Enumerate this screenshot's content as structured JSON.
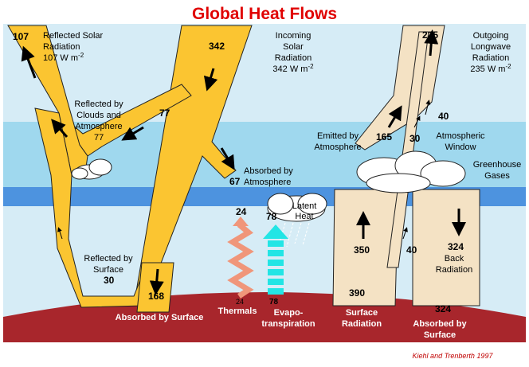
{
  "title": "Global Heat Flows",
  "credit": "Kiehl and Trenberth 1997",
  "unit": "W m",
  "unit_exp": "-2",
  "labels": {
    "reflected_solar": [
      "Reflected Solar",
      "Radiation"
    ],
    "reflected_solar_value": "107",
    "incoming_solar": [
      "Incoming",
      "Solar",
      "Radiation"
    ],
    "incoming_solar_value": "342",
    "outgoing_longwave": [
      "Outgoing",
      "Longwave",
      "Radiation"
    ],
    "outgoing_longwave_value": "235",
    "reflected_clouds": [
      "Reflected by",
      "Clouds and",
      "Atmosphere"
    ],
    "absorbed_atmosphere": [
      "Absorbed by",
      "Atmosphere"
    ],
    "emitted_atmosphere": [
      "Emitted by",
      "Atmosphere"
    ],
    "atmospheric_window": [
      "Atmospheric",
      "Window"
    ],
    "greenhouse_gases": [
      "Greenhouse",
      "Gases"
    ],
    "latent_heat": [
      "Latent",
      "Heat"
    ],
    "reflected_surface": [
      "Reflected by",
      "Surface"
    ],
    "back_radiation": [
      "Back",
      "Radiation"
    ],
    "absorbed_surface_left": "Absorbed by Surface",
    "thermals": "Thermals",
    "evapotranspiration": [
      "Evapo-",
      "transpiration"
    ],
    "surface_radiation": [
      "Surface",
      "Radiation"
    ],
    "absorbed_surface_right": [
      "Absorbed by",
      "Surface"
    ]
  },
  "values": {
    "v107": "107",
    "v342": "342",
    "v235": "235",
    "v77a": "77",
    "v77b": "77",
    "v67": "67",
    "v165": "165",
    "v30a": "30",
    "v40a": "40",
    "v24a": "24",
    "v24b": "24",
    "v78a": "78",
    "v78b": "78",
    "v30b": "30",
    "v168": "168",
    "v350": "350",
    "v40b": "40",
    "v324a": "324",
    "v390": "390",
    "v324b": "324"
  },
  "colors": {
    "sky": "#d6ecf6",
    "atmos_band": "#9fd8ee",
    "deep_band": "#4d93df",
    "solar": "#fbc531",
    "longwave": "#f4e2c4",
    "ground": "#a8262c",
    "thermals": "#f0967a",
    "evap": "#22e5e5",
    "title": "#e00000"
  }
}
